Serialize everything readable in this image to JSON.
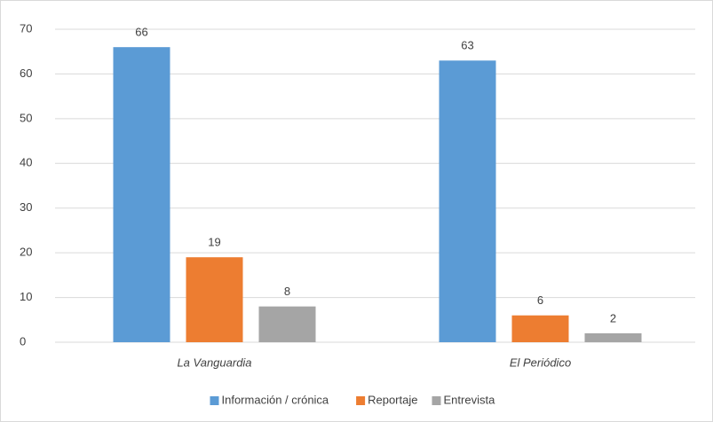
{
  "chart_data": {
    "type": "bar",
    "categories": [
      "La Vanguardia",
      "El Periódico"
    ],
    "series": [
      {
        "name": "Información / crónica",
        "color": "#5b9bd5",
        "values": [
          66,
          63
        ]
      },
      {
        "name": "Reportaje",
        "color": "#ed7d31",
        "values": [
          19,
          6
        ]
      },
      {
        "name": "Entrevista",
        "color": "#a5a5a5",
        "values": [
          8,
          2
        ]
      }
    ],
    "ylim": [
      0,
      70
    ],
    "yticks": [
      0,
      10,
      20,
      30,
      40,
      50,
      60,
      70
    ],
    "grid": true,
    "legend": "bottom"
  }
}
